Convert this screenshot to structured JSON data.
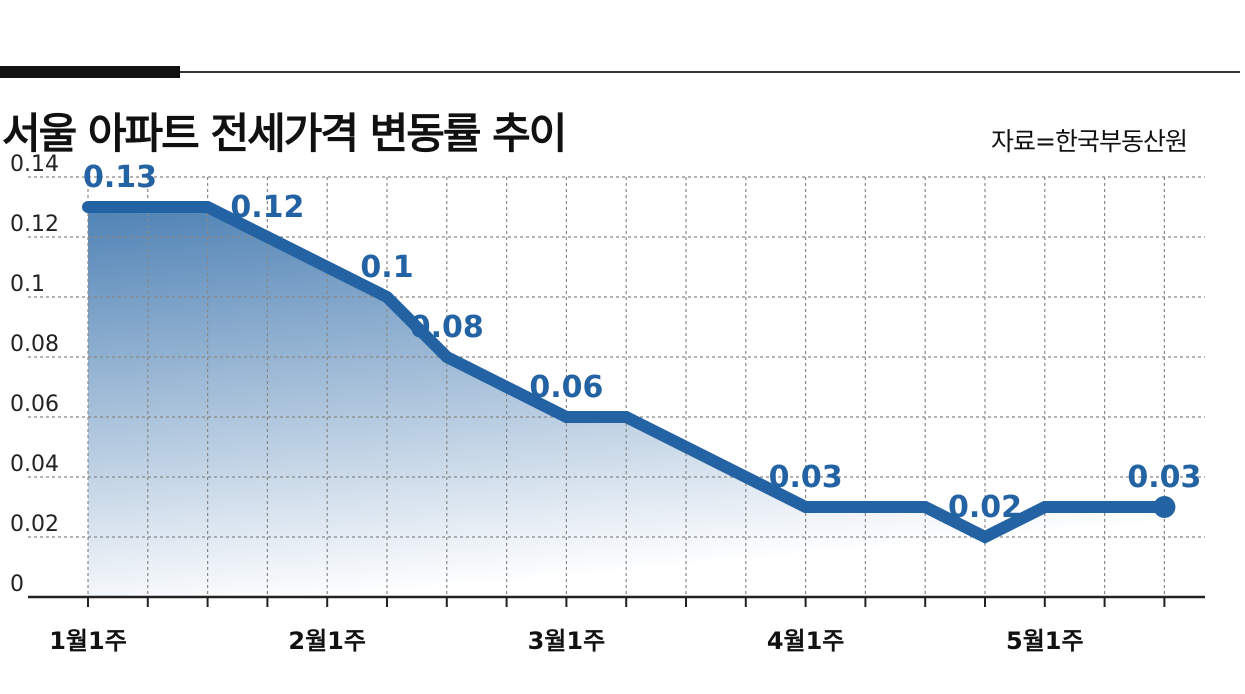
{
  "header": {
    "title": "서울 아파트 전세가격 변동률 추이",
    "source": "자료=한국부동산원"
  },
  "colors": {
    "line": "#2463a3",
    "label": "#2463a3",
    "fill_top": "#4f82b5",
    "fill_bottom": "#ffffff",
    "grid": "#888888",
    "axis": "#222222"
  },
  "chart_data": {
    "type": "area",
    "title": "서울 아파트 전세가격 변동률 추이",
    "xlabel": "",
    "ylabel": "",
    "ylim": [
      0,
      0.14
    ],
    "yticks": [
      "0",
      "0.02",
      "0.04",
      "0.06",
      "0.08",
      "0.1",
      "0.12",
      "0.14"
    ],
    "x_tick_labels": [
      {
        "index": 0,
        "label": "1월1주"
      },
      {
        "index": 4,
        "label": "2월1주"
      },
      {
        "index": 8,
        "label": "3월1주"
      },
      {
        "index": 12,
        "label": "4월1주"
      },
      {
        "index": 16,
        "label": "5월1주"
      }
    ],
    "values": [
      0.13,
      0.13,
      0.13,
      0.12,
      0.11,
      0.1,
      0.08,
      0.07,
      0.06,
      0.06,
      0.05,
      0.04,
      0.03,
      0.03,
      0.03,
      0.02,
      0.03,
      0.03,
      0.03
    ],
    "data_labels": [
      {
        "index": 0,
        "text": "0.13"
      },
      {
        "index": 3,
        "text": "0.12"
      },
      {
        "index": 5,
        "text": "0.1"
      },
      {
        "index": 6,
        "text": "0.08"
      },
      {
        "index": 8,
        "text": "0.06"
      },
      {
        "index": 12,
        "text": "0.03"
      },
      {
        "index": 15,
        "text": "0.02"
      },
      {
        "index": 18,
        "text": "0.03"
      }
    ],
    "grid": true,
    "end_marker": true
  }
}
